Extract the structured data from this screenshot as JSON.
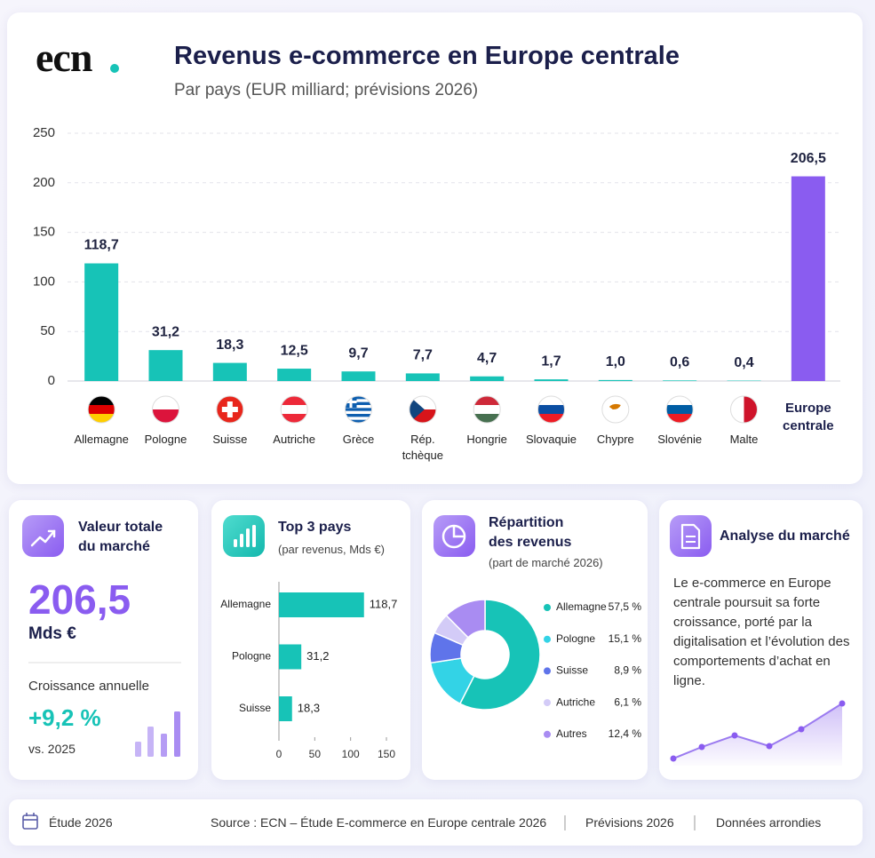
{
  "logo": "ecn",
  "chart_data": [
    {
      "type": "bar",
      "title": "Revenus e-commerce en Europe centrale",
      "subtitle": "Par pays (EUR milliard; prévisions 2026)",
      "categories": [
        "Allemagne",
        "Pologne",
        "Suisse",
        "Autriche",
        "Grèce",
        "Rép. tchèque",
        "Hongrie",
        "Slovaquie",
        "Chypre",
        "Slovénie",
        "Malte",
        "Europe centrale"
      ],
      "values": [
        118.7,
        31.2,
        18.3,
        12.5,
        9.7,
        7.7,
        4.7,
        1.7,
        1.0,
        0.6,
        0.4,
        206.5
      ],
      "value_labels": [
        "118,7",
        "31,2",
        "18,3",
        "12,5",
        "9,7",
        "7,7",
        "4,7",
        "1,7",
        "1,0",
        "0,6",
        "0,4",
        "206,5"
      ],
      "colors": [
        "#17c3b7",
        "#17c3b7",
        "#17c3b7",
        "#17c3b7",
        "#17c3b7",
        "#17c3b7",
        "#17c3b7",
        "#17c3b7",
        "#17c3b7",
        "#17c3b7",
        "#17c3b7",
        "#8a5cf0"
      ],
      "ylim": [
        0,
        250
      ],
      "yticks": [
        0,
        50,
        100,
        150,
        200,
        250
      ],
      "grid": true
    },
    {
      "type": "hbar",
      "title": "Top 3 pays",
      "subtitle": "(par revenus, Mds €)",
      "categories": [
        "Allemagne",
        "Pologne",
        "Suisse"
      ],
      "values": [
        118.7,
        31.2,
        18.3
      ],
      "value_labels": [
        "118,7",
        "31,2",
        "18,3"
      ],
      "color": "#17c3b7",
      "xlim": [
        0,
        150
      ],
      "xticks": [
        0,
        50,
        100,
        150
      ]
    },
    {
      "type": "pie",
      "title": "Répartition des revenus",
      "subtitle": "(part de marché 2026)",
      "categories": [
        "Allemagne",
        "Pologne",
        "Suisse",
        "Autriche",
        "Autres"
      ],
      "values": [
        57.5,
        15.1,
        8.9,
        6.1,
        12.4
      ],
      "value_labels": [
        "57,5 %",
        "15,1 %",
        "8,9 %",
        "6,1 %",
        "12,4 %"
      ],
      "colors": [
        "#17c3b7",
        "#33d3e6",
        "#5f74ea",
        "#d3cbf7",
        "#a98cf2"
      ],
      "donut": true
    }
  ],
  "cards": {
    "total": {
      "title": "Valeur totale du marché",
      "value": "206,5",
      "unit": "Mds €",
      "growth_title": "Croissance annuelle",
      "growth": "+9,2 %",
      "growth_note": "vs. 2025"
    },
    "analysis": {
      "title": "Analyse du marché",
      "text": "Le e-commerce en Europe centrale poursuit sa forte croissance, porté par la digitalisation et l’évolution des comportements d’achat en ligne."
    }
  },
  "footer": {
    "study": "Étude 2026",
    "source": "Source : ECN – Étude E-commerce en Europe centrale 2026",
    "forecast": "Prévisions 2026",
    "note": "Données arrondies"
  }
}
